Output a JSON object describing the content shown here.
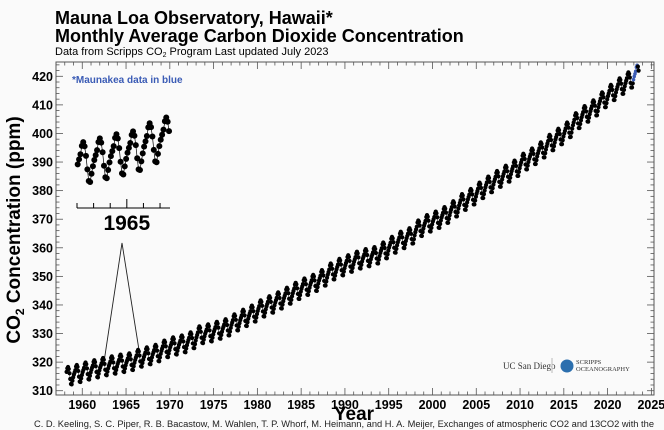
{
  "header": {
    "title_line1": "Mauna Loa Observatory, Hawaii*",
    "title_line2": "Monthly Average Carbon Dioxide Concentration",
    "subtitle_prefix": "Data from Scripps CO",
    "subtitle_sub": "2",
    "subtitle_suffix": " Program   Last updated July 2023"
  },
  "note": {
    "text": "*Maunakea data in blue",
    "color": "#3a5bb5"
  },
  "logos": {
    "ucsd": "UC San Diego",
    "scripps_line1": "SCRIPPS",
    "scripps_line2": "OCEANOGRAPHY"
  },
  "citation": "C. D. Keeling, S. C. Piper, R. B. Bacastow, M. Wahlen, T. P. Whorf, M. Heimann, and H. A. Meijer, Exchanges of atmospheric CO2 and 13CO2 with the",
  "chart_data": {
    "type": "scatter",
    "title": "Mauna Loa Observatory, Hawaii* Monthly Average Carbon Dioxide Concentration",
    "xlabel": "Year",
    "ylabel_prefix": "CO",
    "ylabel_sub": "2",
    "ylabel_suffix": " Concentration (ppm)",
    "xlim": [
      1957,
      2025.3
    ],
    "ylim": [
      308.5,
      425
    ],
    "x_ticks": [
      "1960",
      "1965",
      "1970",
      "1975",
      "1980",
      "1985",
      "1990",
      "1995",
      "2000",
      "2005",
      "2010",
      "2015",
      "2020",
      "2025"
    ],
    "y_ticks": [
      "310",
      "320",
      "330",
      "340",
      "350",
      "360",
      "370",
      "380",
      "390",
      "400",
      "410",
      "420"
    ],
    "grid": false,
    "series_color": "#000000",
    "maunakea_color": "#3a5bb5",
    "start_month": "1958-03",
    "end_month": "2023-07",
    "maunakea_months": [
      "2022-12",
      "2023-05"
    ],
    "annual_mean_years_from": 1958,
    "annual_means_ppm": [
      315.2,
      315.98,
      316.91,
      317.64,
      318.45,
      318.99,
      319.62,
      320.04,
      321.37,
      322.18,
      323.05,
      324.62,
      325.68,
      326.32,
      327.46,
      329.68,
      330.19,
      331.13,
      332.03,
      333.84,
      335.41,
      336.84,
      338.76,
      340.12,
      341.48,
      343.15,
      344.87,
      346.35,
      347.61,
      349.31,
      351.69,
      353.2,
      354.45,
      355.7,
      356.54,
      357.21,
      358.96,
      360.97,
      362.74,
      363.88,
      366.84,
      368.54,
      369.71,
      371.32,
      373.45,
      375.98,
      377.7,
      379.98,
      382.09,
      384.02,
      385.83,
      387.64,
      390.1,
      391.85,
      394.06,
      396.74,
      398.81,
      401.01,
      404.41,
      406.76,
      408.72,
      411.66,
      414.24,
      416.45,
      418.56,
      421.08
    ],
    "seasonal_cycle_ppm": [
      0.0,
      0.7,
      1.4,
      2.6,
      3.1,
      2.4,
      0.9,
      -1.2,
      -3.0,
      -3.2,
      -2.0,
      -0.9
    ],
    "inset": {
      "xlim": [
        1962,
        1967.6
      ],
      "ylim": [
        314.5,
        324.5
      ],
      "x_tick_label": "1965"
    }
  }
}
